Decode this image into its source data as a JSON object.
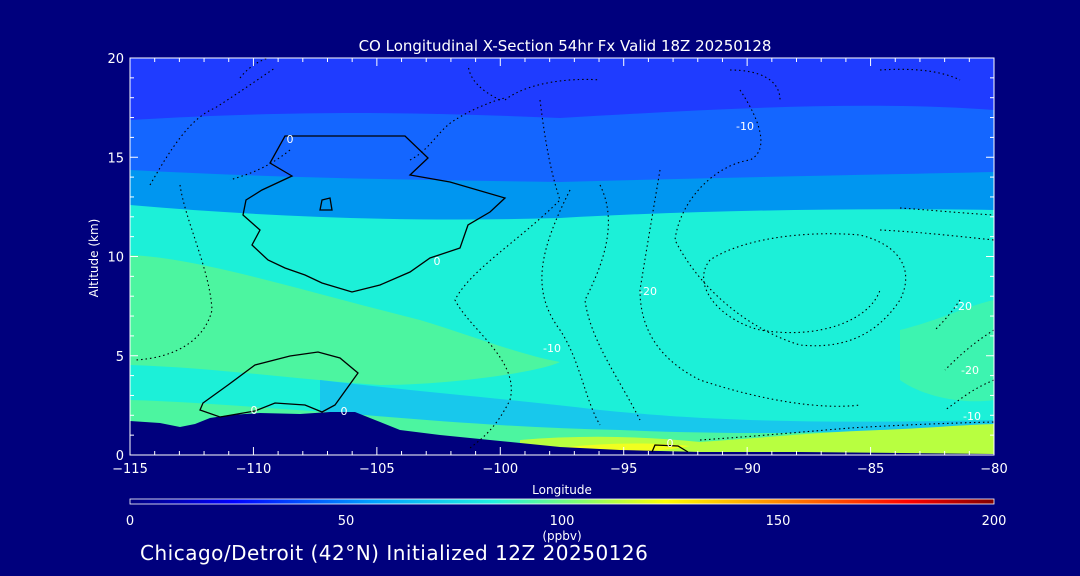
{
  "chart_data": {
    "type": "heatmap",
    "title": "CO Longitudinal X-Section 54hr  Fx Valid 18Z 20250128",
    "xlabel": "Longitude",
    "ylabel": "Altitude (km)",
    "xlim": [
      -115,
      -80
    ],
    "ylim": [
      0,
      20
    ],
    "x_ticks": [
      -115,
      -110,
      -105,
      -100,
      -95,
      -90,
      -85,
      -80
    ],
    "x_tick_labels": [
      "−115",
      "−110",
      "−105",
      "−100",
      "−95",
      "−90",
      "−85",
      "−80"
    ],
    "y_ticks": [
      0,
      5,
      10,
      15,
      20
    ],
    "y_tick_labels": [
      "0",
      "5",
      "10",
      "15",
      "20"
    ],
    "colorbar": {
      "label": "(ppbv)",
      "range": [
        0,
        200
      ],
      "ticks": [
        0,
        50,
        100,
        150,
        200
      ],
      "tick_labels": [
        "0",
        "50",
        "100",
        "150",
        "200"
      ],
      "colormap": [
        "#000080",
        "#0000ff",
        "#00a0ff",
        "#20f0e0",
        "#80ff70",
        "#ffff00",
        "#ff8000",
        "#ff0000",
        "#800000"
      ]
    },
    "filled_layers": [
      {
        "ppbv": 40,
        "color": "#1f3cff",
        "alt_range_km": [
          16,
          20
        ]
      },
      {
        "ppbv": 50,
        "color": "#1466ff",
        "alt_range_km": [
          14.8,
          16.5
        ]
      },
      {
        "ppbv": 60,
        "color": "#0096f0",
        "alt_range_km": [
          12.8,
          14.8
        ]
      },
      {
        "ppbv": 75,
        "color": "#1cf0d8",
        "alt_range_km": [
          2,
          12.5
        ]
      },
      {
        "ppbv": 85,
        "color": "#4cf5a0",
        "alt_range_km": [
          5,
          10
        ]
      },
      {
        "ppbv": 100,
        "color": "#b8ff40",
        "alt_range_km": [
          0,
          1
        ]
      }
    ],
    "contour_lines": {
      "solid": [
        0
      ],
      "dotted": [
        -10,
        -20
      ],
      "labels": [
        "0",
        "0",
        "0",
        "0",
        "0",
        "-10",
        "-10",
        "-20",
        "-20",
        "-20",
        "-10"
      ]
    }
  },
  "footer": "Chicago/Detroit (42°N) Initialized 12Z 20250126"
}
